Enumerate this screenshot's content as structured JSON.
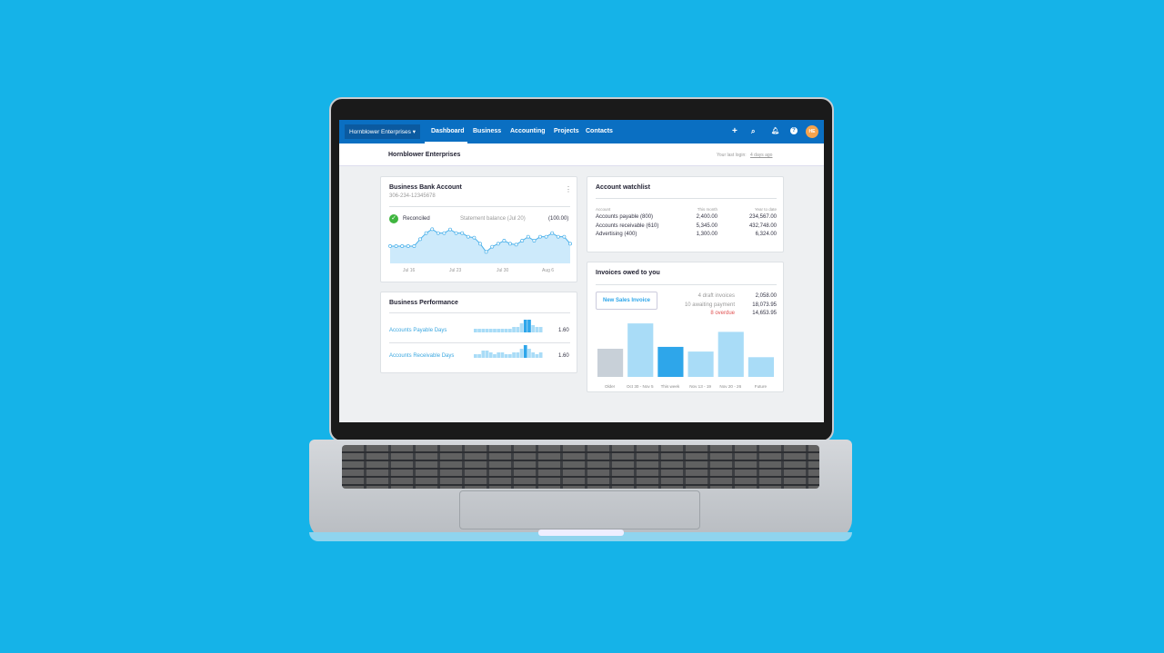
{
  "nav": {
    "org": "Hornblower Enterprises ▾",
    "items": [
      "Dashboard",
      "Business",
      "Accounting",
      "Projects",
      "Contacts"
    ],
    "active": "Dashboard",
    "icons": [
      "plus-icon",
      "search-icon",
      "bell-icon",
      "help-icon"
    ],
    "avatar": "HE",
    "accent": "#0a6fc2"
  },
  "subheader": {
    "title": "Hornblower Enterprises",
    "last_login_label": "Your last login:",
    "last_login": "4 days ago"
  },
  "bank": {
    "title": "Business Bank Account",
    "number": "306-234-12345678",
    "status": "Reconciled",
    "statement_label": "Statement balance (Jul 20)",
    "statement_value": "(100.00)",
    "x_labels": [
      "Jul 16",
      "Jul 23",
      "Jul 30",
      "Aug 6"
    ],
    "series": [
      57,
      57,
      57,
      57,
      57,
      80,
      100,
      113,
      100,
      100,
      112,
      100,
      100,
      88,
      85,
      65,
      38,
      55,
      65,
      75,
      65,
      62,
      75,
      88,
      75,
      88,
      88,
      100,
      88,
      88,
      65
    ]
  },
  "performance": {
    "title": "Business Performance",
    "rows": [
      {
        "label": "Accounts Payable Days",
        "value": "1.60",
        "bars": [
          2,
          2,
          2,
          2,
          2,
          2,
          2,
          2,
          2,
          2,
          3,
          3,
          5,
          7,
          7,
          4,
          3,
          3
        ]
      },
      {
        "label": "Accounts Receivable Days",
        "value": "1.60",
        "bars": [
          2,
          2,
          4,
          4,
          3,
          2,
          3,
          3,
          2,
          2,
          3,
          3,
          5,
          7,
          5,
          3,
          2,
          3
        ]
      }
    ]
  },
  "watchlist": {
    "title": "Account watchlist",
    "columns": [
      "Account",
      "This month",
      "Year to date"
    ],
    "rows": [
      [
        "Accounts payable (800)",
        "2,400.00",
        "234,567.00"
      ],
      [
        "Accounts receivable (610)",
        "5,345.00",
        "432,748.00"
      ],
      [
        "Advertising (400)",
        "1,300.00",
        "6,324.00"
      ]
    ]
  },
  "invoices": {
    "title": "Invoices owed to you",
    "button": "New Sales Invoice",
    "summary": [
      {
        "label": "4 draft invoices",
        "value": "2,058.00"
      },
      {
        "label": "10 awaiting payment",
        "value": "18,073.95"
      },
      {
        "label": "8 overdue",
        "value": "14,653.95",
        "color": "#e05252"
      }
    ],
    "chart_data": {
      "type": "bar",
      "categories": [
        "Older",
        "Oct 30 - Nov 5",
        "This week",
        "Nov 13 - 19",
        "Nov 20 - 26",
        "Future"
      ],
      "values": [
        30,
        57,
        32,
        27,
        48,
        21
      ],
      "colors": [
        "#c8d0d8",
        "#a9dcf7",
        "#2ea6ea",
        "#a9dcf7",
        "#a9dcf7",
        "#a9dcf7"
      ]
    }
  }
}
